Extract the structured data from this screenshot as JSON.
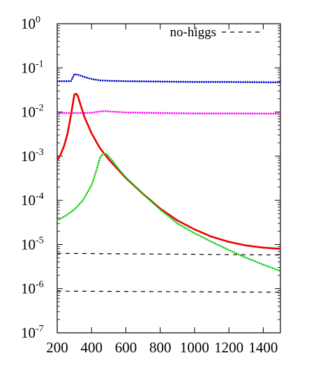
{
  "chart_data": {
    "type": "line",
    "title": "",
    "xlabel": "",
    "ylabel": "",
    "xlim": [
      200,
      1500
    ],
    "ylim_log10": [
      -7,
      0
    ],
    "y_scale": "log",
    "grid": false,
    "legend_placement": "top-right",
    "x_ticks": [
      "200",
      "400",
      "600",
      "800",
      "1000",
      "1200",
      "1400"
    ],
    "y_ticks": [
      {
        "base": "10",
        "exp": "0"
      },
      {
        "base": "10",
        "exp": "-1"
      },
      {
        "base": "10",
        "exp": "-2"
      },
      {
        "base": "10",
        "exp": "-3"
      },
      {
        "base": "10",
        "exp": "-4"
      },
      {
        "base": "10",
        "exp": "-5"
      },
      {
        "base": "10",
        "exp": "-6"
      },
      {
        "base": "10",
        "exp": "-7"
      }
    ],
    "legend": [
      {
        "label": "no-higgs",
        "color": "#000000",
        "dash": "dashed"
      }
    ],
    "series": [
      {
        "color": "#0000cc",
        "style": "dotted",
        "x": [
          200,
          280,
          300,
          320,
          360,
          400,
          450,
          500,
          600,
          800,
          1000,
          1200,
          1500
        ],
        "y": [
          0.05,
          0.05,
          0.072,
          0.07,
          0.062,
          0.056,
          0.052,
          0.051,
          0.05,
          0.049,
          0.048,
          0.048,
          0.047
        ]
      },
      {
        "color": "#ff00ff",
        "style": "dotted",
        "x": [
          200,
          300,
          400,
          440,
          480,
          520,
          600,
          800,
          1000,
          1200,
          1500
        ],
        "y": [
          0.0095,
          0.0095,
          0.0096,
          0.0102,
          0.0105,
          0.0102,
          0.0098,
          0.0095,
          0.0093,
          0.0093,
          0.0092
        ]
      },
      {
        "color": "#ee0000",
        "style": "solid",
        "x": [
          200,
          220,
          240,
          260,
          280,
          300,
          310,
          320,
          340,
          360,
          400,
          450,
          500,
          600,
          700,
          800,
          900,
          1000,
          1100,
          1200,
          1300,
          1400,
          1500
        ],
        "y": [
          0.0008,
          0.0011,
          0.0017,
          0.0032,
          0.0085,
          0.025,
          0.026,
          0.023,
          0.013,
          0.0075,
          0.0033,
          0.0015,
          0.00085,
          0.00032,
          0.00014,
          6.5e-05,
          3.5e-05,
          2.2e-05,
          1.5e-05,
          1.15e-05,
          9.5e-06,
          8.5e-06,
          8e-06
        ]
      },
      {
        "color": "#00cc00",
        "style": "dotted",
        "x": [
          200,
          250,
          300,
          350,
          400,
          430,
          450,
          470,
          490,
          520,
          560,
          600,
          700,
          800,
          900,
          1000,
          1100,
          1200,
          1300,
          1400,
          1500
        ],
        "y": [
          3.5e-05,
          4.5e-05,
          6.2e-05,
          0.0001,
          0.00022,
          0.0005,
          0.00095,
          0.00115,
          0.0011,
          0.0008,
          0.0005,
          0.00033,
          0.00014,
          6.2e-05,
          3e-05,
          1.8e-05,
          1.15e-05,
          7.5e-06,
          5e-06,
          3.5e-06,
          2.5e-06
        ]
      },
      {
        "color": "#000000",
        "style": "dashed",
        "x": [
          200,
          1500
        ],
        "y": [
          6.3e-06,
          5.8e-06
        ]
      },
      {
        "color": "#000000",
        "style": "dashed",
        "x": [
          200,
          1500
        ],
        "y": [
          8.8e-07,
          8.3e-07
        ]
      }
    ]
  }
}
